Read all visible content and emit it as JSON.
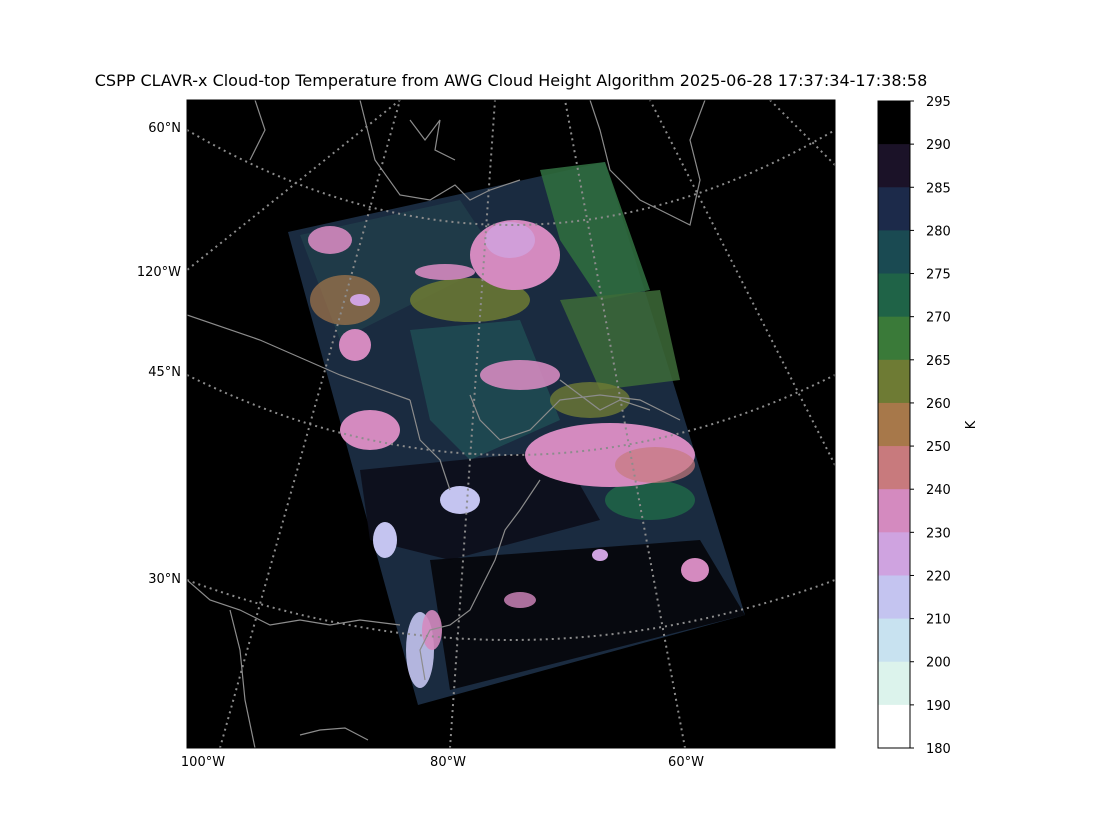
{
  "title": "CSPP CLAVR-x Cloud-top Temperature from AWG Cloud Height Algorithm 2025-06-28 17:37:34-17:38:58",
  "map": {
    "projection": "lambert-conformal",
    "gridline_style": "dotted",
    "gridline_color": "#8c8c8c",
    "background_color": "#000000",
    "coastline_color": "#8c8c8c",
    "lat_labels": [
      "60°N",
      "45°N",
      "30°N"
    ],
    "lon_labels_left": [
      "120°W"
    ],
    "lon_labels_bottom": [
      "100°W",
      "80°W",
      "60°W"
    ]
  },
  "colorbar": {
    "label": "K",
    "ticks": [
      "295",
      "290",
      "285",
      "280",
      "275",
      "270",
      "265",
      "260",
      "250",
      "240",
      "230",
      "220",
      "210",
      "200",
      "190",
      "180"
    ],
    "colors": [
      "#000000",
      "#1b1228",
      "#1c2a4a",
      "#1a4a52",
      "#1f6347",
      "#3a7a39",
      "#6e7b34",
      "#a7784a",
      "#c87a7d",
      "#d48abf",
      "#cfa3e0",
      "#c4c4f0",
      "#c8e2f0",
      "#dcf3ec",
      "#ffffff"
    ]
  }
}
